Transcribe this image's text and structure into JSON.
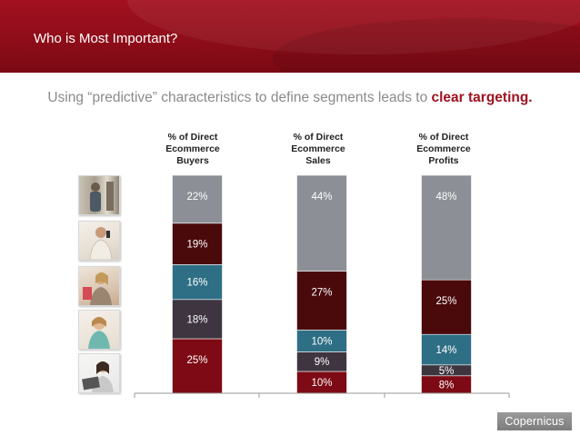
{
  "header": {
    "title": "Who is Most Important?"
  },
  "subtitle": {
    "text": "Using “predictive” characteristics to define segments leads to ",
    "highlight": "clear targeting."
  },
  "columns": [
    {
      "lines": [
        "% of Direct",
        "Ecommerce",
        "Buyers"
      ]
    },
    {
      "lines": [
        "% of Direct",
        "Ecommerce",
        "Sales"
      ]
    },
    {
      "lines": [
        "% of Direct",
        "Ecommerce",
        "Profits"
      ]
    }
  ],
  "segment_icons": [
    "shopper-photo-icon",
    "man-phone-photo-icon",
    "woman-shopping-photo-icon",
    "woman-smiling-photo-icon",
    "woman-tablet-photo-icon"
  ],
  "logo": {
    "text": "Copernicus"
  },
  "chart_data": {
    "type": "bar",
    "stacked": true,
    "categories": [
      "% of Direct Ecommerce Buyers",
      "% of Direct Ecommerce Sales",
      "% of Direct Ecommerce Profits"
    ],
    "series": [
      {
        "color": "#7d0a14",
        "values": [
          25,
          10,
          8
        ]
      },
      {
        "color": "#3e3540",
        "values": [
          18,
          9,
          5
        ]
      },
      {
        "color": "#2e6f85",
        "values": [
          16,
          10,
          14
        ]
      },
      {
        "color": "#4a0a0c",
        "values": [
          19,
          27,
          25
        ]
      },
      {
        "color": "#8c9096",
        "values": [
          22,
          44,
          48
        ]
      }
    ],
    "labels": [
      [
        "25%",
        "10%",
        "8%"
      ],
      [
        "18%",
        "9%",
        "5%"
      ],
      [
        "16%",
        "10%",
        "14%"
      ],
      [
        "19%",
        "27%",
        "25%"
      ],
      [
        "22%",
        "44%",
        "48%"
      ]
    ],
    "ylim": [
      0,
      100
    ],
    "legend": "none",
    "grid": false
  }
}
